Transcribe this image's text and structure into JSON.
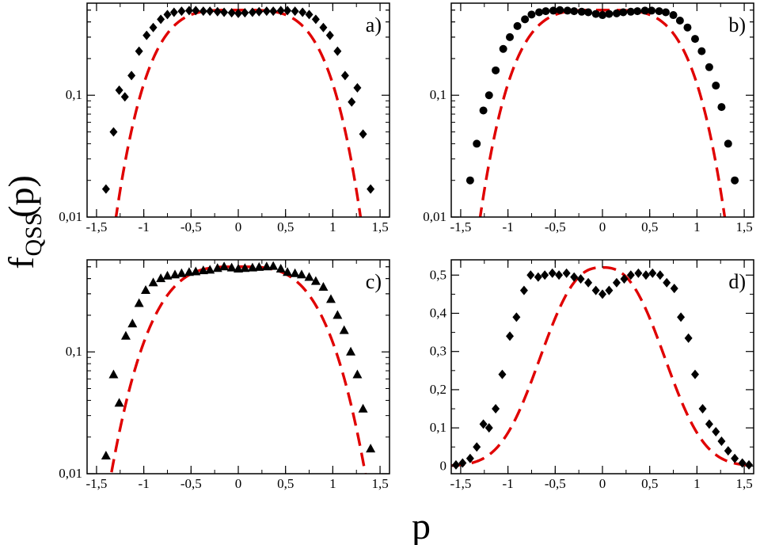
{
  "figure": {
    "ylabel_main": "f",
    "ylabel_sub": "QSS",
    "ylabel_arg": "(p)",
    "xlabel": "p"
  },
  "chart_data": [
    {
      "type": "scatter",
      "panel": "a)",
      "yscale": "log",
      "xlim": [
        -1.6,
        1.6
      ],
      "ylim": [
        0.01,
        0.57
      ],
      "xticks": [
        -1.5,
        -1,
        -0.5,
        0,
        0.5,
        1,
        1.5
      ],
      "xticklabels": [
        "-1,5",
        "-1",
        "-0,5",
        "0",
        "0,5",
        "1",
        "1,5"
      ],
      "yticks": [
        0.01,
        0.1
      ],
      "yticklabels": [
        "0,01",
        "0,1"
      ],
      "marker": "diamond",
      "points": [
        [
          -1.4,
          0.017
        ],
        [
          -1.32,
          0.05
        ],
        [
          -1.26,
          0.11
        ],
        [
          -1.2,
          0.097
        ],
        [
          -1.13,
          0.145
        ],
        [
          -1.05,
          0.23
        ],
        [
          -0.97,
          0.31
        ],
        [
          -0.9,
          0.36
        ],
        [
          -0.82,
          0.42
        ],
        [
          -0.75,
          0.46
        ],
        [
          -0.68,
          0.48
        ],
        [
          -0.6,
          0.49
        ],
        [
          -0.52,
          0.495
        ],
        [
          -0.45,
          0.495
        ],
        [
          -0.37,
          0.49
        ],
        [
          -0.3,
          0.49
        ],
        [
          -0.22,
          0.485
        ],
        [
          -0.15,
          0.48
        ],
        [
          -0.07,
          0.475
        ],
        [
          0.0,
          0.47
        ],
        [
          0.07,
          0.475
        ],
        [
          0.15,
          0.48
        ],
        [
          0.22,
          0.485
        ],
        [
          0.3,
          0.49
        ],
        [
          0.37,
          0.49
        ],
        [
          0.45,
          0.495
        ],
        [
          0.52,
          0.495
        ],
        [
          0.6,
          0.49
        ],
        [
          0.68,
          0.48
        ],
        [
          0.75,
          0.46
        ],
        [
          0.82,
          0.42
        ],
        [
          0.9,
          0.36
        ],
        [
          0.97,
          0.31
        ],
        [
          1.05,
          0.23
        ],
        [
          1.13,
          0.145
        ],
        [
          1.2,
          0.088
        ],
        [
          1.26,
          0.115
        ],
        [
          1.32,
          0.048
        ],
        [
          1.4,
          0.017
        ]
      ],
      "fit": {
        "style": "dashed",
        "color": "#e00000",
        "amplitude": 0.5,
        "width": 0.92,
        "power": 4
      }
    },
    {
      "type": "scatter",
      "panel": "b)",
      "yscale": "log",
      "xlim": [
        -1.6,
        1.6
      ],
      "ylim": [
        0.01,
        0.57
      ],
      "xticks": [
        -1.5,
        -1,
        -0.5,
        0,
        0.5,
        1,
        1.5
      ],
      "xticklabels": [
        "-1,5",
        "-1",
        "-0,5",
        "0",
        "0,5",
        "1",
        "1,5"
      ],
      "yticks": [
        0.01,
        0.1
      ],
      "yticklabels": [
        "0,01",
        "0,1"
      ],
      "marker": "circle",
      "points": [
        [
          -1.4,
          0.02
        ],
        [
          -1.33,
          0.04
        ],
        [
          -1.26,
          0.075
        ],
        [
          -1.2,
          0.1
        ],
        [
          -1.13,
          0.16
        ],
        [
          -1.05,
          0.24
        ],
        [
          -0.98,
          0.3
        ],
        [
          -0.9,
          0.37
        ],
        [
          -0.82,
          0.42
        ],
        [
          -0.75,
          0.46
        ],
        [
          -0.67,
          0.48
        ],
        [
          -0.6,
          0.49
        ],
        [
          -0.52,
          0.495
        ],
        [
          -0.45,
          0.5
        ],
        [
          -0.37,
          0.495
        ],
        [
          -0.3,
          0.49
        ],
        [
          -0.22,
          0.485
        ],
        [
          -0.15,
          0.48
        ],
        [
          -0.07,
          0.465
        ],
        [
          0.0,
          0.455
        ],
        [
          0.07,
          0.465
        ],
        [
          0.15,
          0.47
        ],
        [
          0.22,
          0.48
        ],
        [
          0.3,
          0.485
        ],
        [
          0.37,
          0.49
        ],
        [
          0.45,
          0.495
        ],
        [
          0.52,
          0.495
        ],
        [
          0.6,
          0.49
        ],
        [
          0.67,
          0.48
        ],
        [
          0.75,
          0.455
        ],
        [
          0.82,
          0.41
        ],
        [
          0.9,
          0.36
        ],
        [
          0.98,
          0.29
        ],
        [
          1.05,
          0.23
        ],
        [
          1.13,
          0.17
        ],
        [
          1.2,
          0.12
        ],
        [
          1.26,
          0.08
        ],
        [
          1.33,
          0.04
        ],
        [
          1.4,
          0.02
        ]
      ],
      "fit": {
        "style": "dashed",
        "color": "#e00000",
        "amplitude": 0.5,
        "width": 0.92,
        "power": 4
      }
    },
    {
      "type": "scatter",
      "panel": "c)",
      "yscale": "log",
      "xlim": [
        -1.6,
        1.6
      ],
      "ylim": [
        0.01,
        0.57
      ],
      "xticks": [
        -1.5,
        -1,
        -0.5,
        0,
        0.5,
        1,
        1.5
      ],
      "xticklabels": [
        "-1,5",
        "-1",
        "-0,5",
        "0",
        "0,5",
        "1",
        "1,5"
      ],
      "yticks": [
        0.01,
        0.1
      ],
      "yticklabels": [
        "0,01",
        "0,1"
      ],
      "marker": "triangle",
      "points": [
        [
          -1.4,
          0.014
        ],
        [
          -1.32,
          0.065
        ],
        [
          -1.26,
          0.038
        ],
        [
          -1.19,
          0.135
        ],
        [
          -1.12,
          0.17
        ],
        [
          -1.05,
          0.25
        ],
        [
          -0.98,
          0.32
        ],
        [
          -0.9,
          0.37
        ],
        [
          -0.82,
          0.4
        ],
        [
          -0.75,
          0.42
        ],
        [
          -0.67,
          0.43
        ],
        [
          -0.6,
          0.44
        ],
        [
          -0.52,
          0.45
        ],
        [
          -0.45,
          0.455
        ],
        [
          -0.37,
          0.465
        ],
        [
          -0.3,
          0.47
        ],
        [
          -0.22,
          0.485
        ],
        [
          -0.15,
          0.5
        ],
        [
          -0.07,
          0.49
        ],
        [
          0.0,
          0.48
        ],
        [
          0.07,
          0.485
        ],
        [
          0.15,
          0.49
        ],
        [
          0.22,
          0.495
        ],
        [
          0.3,
          0.5
        ],
        [
          0.37,
          0.505
        ],
        [
          0.45,
          0.48
        ],
        [
          0.52,
          0.45
        ],
        [
          0.6,
          0.44
        ],
        [
          0.67,
          0.43
        ],
        [
          0.75,
          0.41
        ],
        [
          0.82,
          0.38
        ],
        [
          0.9,
          0.34
        ],
        [
          0.98,
          0.27
        ],
        [
          1.05,
          0.2
        ],
        [
          1.12,
          0.15
        ],
        [
          1.19,
          0.1
        ],
        [
          1.26,
          0.065
        ],
        [
          1.32,
          0.034
        ],
        [
          1.4,
          0.016
        ]
      ],
      "fit": {
        "style": "dashed",
        "color": "#e00000",
        "amplitude": 0.5,
        "width": 0.9,
        "power": 3.4
      }
    },
    {
      "type": "scatter",
      "panel": "d)",
      "yscale": "linear",
      "xlim": [
        -1.6,
        1.6
      ],
      "ylim": [
        -0.02,
        0.54
      ],
      "xticks": [
        -1.5,
        -1,
        -0.5,
        0,
        0.5,
        1,
        1.5
      ],
      "xticklabels": [
        "-1,5",
        "-1",
        "-0,5",
        "0",
        "0,5",
        "1",
        "1,5"
      ],
      "yticks": [
        0,
        0.1,
        0.2,
        0.3,
        0.4,
        0.5
      ],
      "yticklabels": [
        "0",
        "0,1",
        "0,2",
        "0,3",
        "0,4",
        "0,5"
      ],
      "marker": "diamond",
      "points": [
        [
          -1.55,
          0.003
        ],
        [
          -1.48,
          0.008
        ],
        [
          -1.4,
          0.02
        ],
        [
          -1.33,
          0.05
        ],
        [
          -1.26,
          0.11
        ],
        [
          -1.2,
          0.1
        ],
        [
          -1.13,
          0.15
        ],
        [
          -1.06,
          0.24
        ],
        [
          -0.98,
          0.34
        ],
        [
          -0.91,
          0.39
        ],
        [
          -0.83,
          0.46
        ],
        [
          -0.76,
          0.5
        ],
        [
          -0.68,
          0.495
        ],
        [
          -0.61,
          0.5
        ],
        [
          -0.53,
          0.505
        ],
        [
          -0.46,
          0.5
        ],
        [
          -0.38,
          0.505
        ],
        [
          -0.3,
          0.495
        ],
        [
          -0.23,
          0.49
        ],
        [
          -0.15,
          0.48
        ],
        [
          -0.07,
          0.46
        ],
        [
          0.0,
          0.45
        ],
        [
          0.07,
          0.46
        ],
        [
          0.15,
          0.48
        ],
        [
          0.23,
          0.49
        ],
        [
          0.3,
          0.5
        ],
        [
          0.38,
          0.505
        ],
        [
          0.46,
          0.5
        ],
        [
          0.53,
          0.505
        ],
        [
          0.61,
          0.5
        ],
        [
          0.68,
          0.48
        ],
        [
          0.76,
          0.465
        ],
        [
          0.83,
          0.39
        ],
        [
          0.91,
          0.335
        ],
        [
          0.98,
          0.24
        ],
        [
          1.06,
          0.15
        ],
        [
          1.13,
          0.11
        ],
        [
          1.2,
          0.09
        ],
        [
          1.26,
          0.065
        ],
        [
          1.33,
          0.04
        ],
        [
          1.4,
          0.02
        ],
        [
          1.48,
          0.008
        ],
        [
          1.55,
          0.003
        ]
      ],
      "fit": {
        "style": "dashed",
        "color": "#e00000",
        "amplitude": 0.52,
        "width": 0.8,
        "power": 2.6
      }
    }
  ]
}
